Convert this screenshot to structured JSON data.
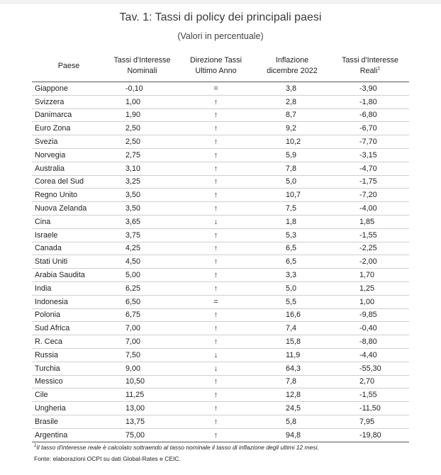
{
  "title": "Tav. 1: Tassi di policy dei principali paesi",
  "subtitle": "(Valori in percentuale)",
  "headers": {
    "country": "Paese",
    "nominal_l1": "Tassi d'Interesse",
    "nominal_l2": "Nominali",
    "direction_l1": "Direzione Tassi",
    "direction_l2": "Ultimo Anno",
    "inflation_l1": "Inflazione",
    "inflation_l2": "dicembre 2022",
    "real_l1": "Tassi d'Interesse",
    "real_l2": "Reali",
    "real_sup": "1"
  },
  "rows": [
    {
      "country": "Giappone",
      "nominal": "-0,10",
      "direction": "=",
      "inflation": "3,8",
      "real": "-3,90"
    },
    {
      "country": "Svizzera",
      "nominal": "1,00",
      "direction": "↑",
      "inflation": "2,8",
      "real": "-1,80"
    },
    {
      "country": "Danimarca",
      "nominal": "1,90",
      "direction": "↑",
      "inflation": "8,7",
      "real": "-6,80"
    },
    {
      "country": "Euro Zona",
      "nominal": "2,50",
      "direction": "↑",
      "inflation": "9,2",
      "real": "-6,70"
    },
    {
      "country": "Svezia",
      "nominal": "2,50",
      "direction": "↑",
      "inflation": "10,2",
      "real": "-7,70"
    },
    {
      "country": "Norvegia",
      "nominal": "2,75",
      "direction": "↑",
      "inflation": "5,9",
      "real": "-3,15"
    },
    {
      "country": "Australia",
      "nominal": "3,10",
      "direction": "↑",
      "inflation": "7,8",
      "real": "-4,70"
    },
    {
      "country": "Corea del Sud",
      "nominal": "3,25",
      "direction": "↑",
      "inflation": "5,0",
      "real": "-1,75"
    },
    {
      "country": "Regno Unito",
      "nominal": "3,50",
      "direction": "↑",
      "inflation": "10,7",
      "real": "-7,20"
    },
    {
      "country": "Nuova Zelanda",
      "nominal": "3,50",
      "direction": "↑",
      "inflation": "7,5",
      "real": "-4,00"
    },
    {
      "country": "Cina",
      "nominal": "3,65",
      "direction": "↓",
      "inflation": "1,8",
      "real": "1,85"
    },
    {
      "country": "Israele",
      "nominal": "3,75",
      "direction": "↑",
      "inflation": "5,3",
      "real": "-1,55"
    },
    {
      "country": "Canada",
      "nominal": "4,25",
      "direction": "↑",
      "inflation": "6,5",
      "real": "-2,25"
    },
    {
      "country": "Stati Uniti",
      "nominal": "4,50",
      "direction": "↑",
      "inflation": "6,5",
      "real": "-2,00"
    },
    {
      "country": "Arabia Saudita",
      "nominal": "5,00",
      "direction": "↑",
      "inflation": "3,3",
      "real": "1,70"
    },
    {
      "country": "India",
      "nominal": "6,25",
      "direction": "↑",
      "inflation": "5,0",
      "real": "1,25"
    },
    {
      "country": "Indonesia",
      "nominal": "6,50",
      "direction": "=",
      "inflation": "5,5",
      "real": "1,00"
    },
    {
      "country": "Polonia",
      "nominal": "6,75",
      "direction": "↑",
      "inflation": "16,6",
      "real": "-9,85"
    },
    {
      "country": "Sud Africa",
      "nominal": "7,00",
      "direction": "↑",
      "inflation": "7,4",
      "real": "-0,40"
    },
    {
      "country": "R. Ceca",
      "nominal": "7,00",
      "direction": "↑",
      "inflation": "15,8",
      "real": "-8,80"
    },
    {
      "country": "Russia",
      "nominal": "7,50",
      "direction": "↓",
      "inflation": "11,9",
      "real": "-4,40"
    },
    {
      "country": "Turchia",
      "nominal": "9,00",
      "direction": "↓",
      "inflation": "64,3",
      "real": "-55,30"
    },
    {
      "country": "Messico",
      "nominal": "10,50",
      "direction": "↑",
      "inflation": "7,8",
      "real": "2,70"
    },
    {
      "country": "Cile",
      "nominal": "11,25",
      "direction": "↑",
      "inflation": "12,8",
      "real": "-1,55"
    },
    {
      "country": "Ungheria",
      "nominal": "13,00",
      "direction": "↑",
      "inflation": "24,5",
      "real": "-11,50"
    },
    {
      "country": "Brasile",
      "nominal": "13,75",
      "direction": "↑",
      "inflation": "5,8",
      "real": "7,95"
    },
    {
      "country": "Argentina",
      "nominal": "75,00",
      "direction": "↑",
      "inflation": "94,8",
      "real": "-19,80"
    }
  ],
  "footnote_sup": "1",
  "footnote": "Il tasso d'interesse reale è calcolato sottraendo al tasso nominale il tasso di inflazione degli ultimi 12 mesi.",
  "source": "Fonte: elaborazioni OCPI su dati Global-Rates e CEIC."
}
